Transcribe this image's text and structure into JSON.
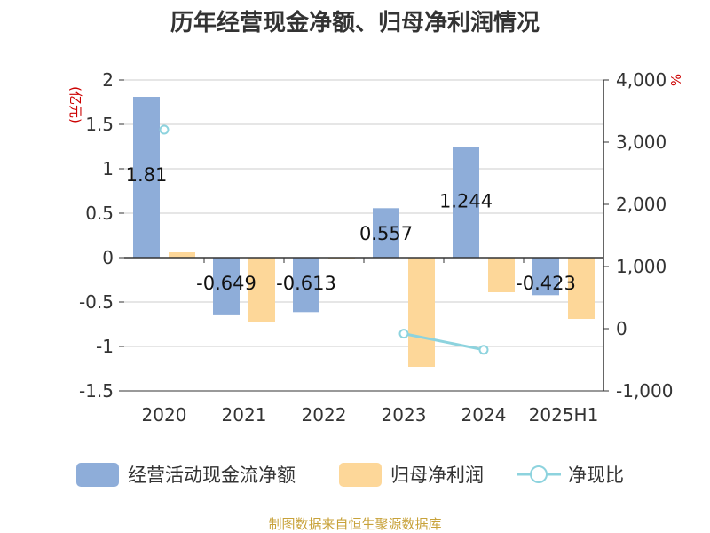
{
  "chart_data": {
    "type": "bar",
    "title": "历年经营现金净额、归母净利润情况",
    "categories": [
      "2020",
      "2021",
      "2022",
      "2023",
      "2024",
      "2025H1"
    ],
    "series": [
      {
        "name": "经营活动现金流净额",
        "type": "bar",
        "axis": "left",
        "color": "#8eadd9",
        "values": [
          1.81,
          -0.649,
          -0.613,
          0.557,
          1.244,
          -0.423
        ],
        "labels": [
          "1.81",
          "-0.649",
          "-0.613",
          "0.557",
          "1.244",
          "-0.423"
        ]
      },
      {
        "name": "归母净利润",
        "type": "bar",
        "axis": "left",
        "color": "#fdd799",
        "values": [
          0.06,
          -0.73,
          -0.01,
          -1.23,
          -0.39,
          -0.69
        ]
      },
      {
        "name": "净现比",
        "type": "line",
        "axis": "right",
        "color": "#8dd3de",
        "values": [
          3200,
          null,
          null,
          -80,
          -340,
          null
        ]
      }
    ],
    "left_axis": {
      "unit": "(亿元)",
      "ylim": [
        -1.5,
        2
      ],
      "ticks": [
        2,
        1.5,
        1,
        0.5,
        0,
        -0.5,
        -1,
        -1.5
      ],
      "tick_labels": [
        "2",
        "1.5",
        "1",
        "0.5",
        "0",
        "-0.5",
        "-1",
        "-1.5"
      ]
    },
    "right_axis": {
      "unit": "%",
      "ylim": [
        -1000,
        4000
      ],
      "ticks": [
        4000,
        3000,
        2000,
        1000,
        0,
        -1000
      ],
      "tick_labels": [
        "4,000",
        "3,000",
        "2,000",
        "1,000",
        "0",
        "-1,000"
      ]
    },
    "grid": true,
    "legend_position": "bottom",
    "source": "制图数据来自恒生聚源数据库"
  }
}
